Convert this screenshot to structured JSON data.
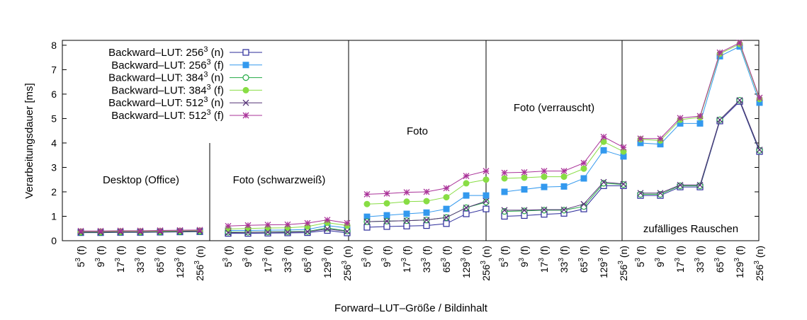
{
  "chart_data": {
    "type": "line",
    "title": "",
    "xlabel": "Forward–LUT–Größe / Bildinhalt",
    "ylabel": "Verarbeitungsdauer [ms]",
    "ylim": [
      0,
      8.2
    ],
    "yticks": [
      "0",
      "1",
      "2",
      "3",
      "4",
      "5",
      "6",
      "7",
      "8"
    ],
    "grid": false,
    "legend_position": "top-left",
    "categories": [
      {
        "base": "5",
        "exp": "3",
        "suffix": " (f)"
      },
      {
        "base": "9",
        "exp": "3",
        "suffix": " (f)"
      },
      {
        "base": "17",
        "exp": "3",
        "suffix": " (f)"
      },
      {
        "base": "33",
        "exp": "3",
        "suffix": " (f)"
      },
      {
        "base": "65",
        "exp": "3",
        "suffix": " (f)"
      },
      {
        "base": "129",
        "exp": "3",
        "suffix": " (f)"
      },
      {
        "base": "256",
        "exp": "3",
        "suffix": " (n)"
      }
    ],
    "groups": [
      {
        "label": "Desktop (Office)",
        "series": [
          [
            0.33,
            0.33,
            0.34,
            0.34,
            0.35,
            0.36,
            0.37
          ],
          [
            0.35,
            0.35,
            0.36,
            0.36,
            0.37,
            0.38,
            0.39
          ],
          [
            0.34,
            0.34,
            0.35,
            0.35,
            0.36,
            0.37,
            0.38
          ],
          [
            0.37,
            0.37,
            0.38,
            0.38,
            0.39,
            0.4,
            0.41
          ],
          [
            0.35,
            0.35,
            0.36,
            0.36,
            0.37,
            0.38,
            0.39
          ],
          [
            0.4,
            0.4,
            0.41,
            0.41,
            0.42,
            0.43,
            0.44
          ]
        ]
      },
      {
        "label": "Foto (schwarzweiß)",
        "series": [
          [
            0.3,
            0.3,
            0.31,
            0.32,
            0.33,
            0.42,
            0.32
          ],
          [
            0.42,
            0.42,
            0.43,
            0.44,
            0.46,
            0.62,
            0.52
          ],
          [
            0.35,
            0.35,
            0.36,
            0.37,
            0.38,
            0.52,
            0.4
          ],
          [
            0.48,
            0.5,
            0.52,
            0.53,
            0.58,
            0.74,
            0.62
          ],
          [
            0.33,
            0.34,
            0.35,
            0.35,
            0.37,
            0.48,
            0.38
          ],
          [
            0.6,
            0.63,
            0.65,
            0.66,
            0.72,
            0.85,
            0.72
          ]
        ]
      },
      {
        "label": "Foto",
        "series": [
          [
            0.55,
            0.58,
            0.6,
            0.62,
            0.7,
            1.1,
            1.3
          ],
          [
            0.98,
            1.04,
            1.1,
            1.15,
            1.3,
            1.85,
            1.85
          ],
          [
            0.78,
            0.8,
            0.82,
            0.85,
            0.95,
            1.35,
            1.58
          ],
          [
            1.5,
            1.53,
            1.6,
            1.62,
            1.78,
            2.35,
            2.5
          ],
          [
            0.78,
            0.8,
            0.82,
            0.85,
            0.95,
            1.35,
            1.62
          ],
          [
            1.9,
            1.93,
            1.98,
            2.0,
            2.15,
            2.65,
            2.85
          ]
        ]
      },
      {
        "label": "Foto (verrauscht)",
        "series": [
          [
            1.0,
            1.03,
            1.08,
            1.12,
            1.3,
            2.25,
            2.25
          ],
          [
            2.0,
            2.1,
            2.2,
            2.22,
            2.55,
            3.7,
            3.45
          ],
          [
            1.2,
            1.22,
            1.25,
            1.25,
            1.4,
            2.35,
            2.3
          ],
          [
            2.55,
            2.58,
            2.62,
            2.62,
            2.95,
            4.05,
            3.65
          ],
          [
            1.25,
            1.25,
            1.27,
            1.27,
            1.5,
            2.4,
            2.32
          ],
          [
            2.78,
            2.8,
            2.85,
            2.85,
            3.18,
            4.25,
            3.82
          ]
        ]
      },
      {
        "label": "zufälliges Rauschen",
        "series": [
          [
            1.85,
            1.85,
            2.2,
            2.2,
            4.9,
            5.7,
            3.65
          ],
          [
            4.0,
            3.95,
            4.8,
            4.8,
            7.55,
            7.95,
            5.65
          ],
          [
            1.9,
            1.9,
            2.25,
            2.25,
            4.95,
            5.75,
            3.7
          ],
          [
            4.15,
            4.1,
            4.95,
            5.05,
            7.65,
            8.05,
            5.8
          ],
          [
            1.95,
            1.95,
            2.28,
            2.28,
            4.95,
            5.75,
            3.72
          ],
          [
            4.18,
            4.18,
            5.02,
            5.1,
            7.7,
            8.1,
            5.85
          ]
        ]
      }
    ],
    "series": [
      {
        "name_prefix": "Backward–LUT: 256",
        "exp": "3",
        "suffix": " (n)",
        "color": "#2b2b9a",
        "marker": "open-square"
      },
      {
        "name_prefix": "Backward–LUT: 256",
        "exp": "3",
        "suffix": " (f)",
        "color": "#3399ee",
        "marker": "filled-square"
      },
      {
        "name_prefix": "Backward–LUT: 384",
        "exp": "3",
        "suffix": " (n)",
        "color": "#22aa44",
        "marker": "open-circle"
      },
      {
        "name_prefix": "Backward–LUT: 384",
        "exp": "3",
        "suffix": " (f)",
        "color": "#88dd44",
        "marker": "filled-circle"
      },
      {
        "name_prefix": "Backward–LUT: 512",
        "exp": "3",
        "suffix": " (n)",
        "color": "#553377",
        "marker": "cross"
      },
      {
        "name_prefix": "Backward–LUT: 512",
        "exp": "3",
        "suffix": " (f)",
        "color": "#aa3399",
        "marker": "star"
      }
    ]
  }
}
